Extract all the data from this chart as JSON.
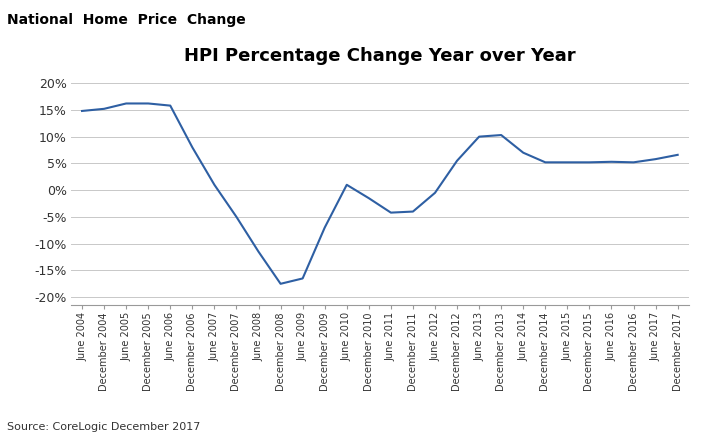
{
  "title": "HPI Percentage Change Year over Year",
  "super_title": "National  Home  Price  Change",
  "source": "Source: CoreLogic December 2017",
  "line_color": "#2E5FA3",
  "background_color": "#ffffff",
  "grid_color": "#c8c8c8",
  "ylim": [
    -0.215,
    0.225
  ],
  "ytick_labels": [
    "-20%",
    "-15%",
    "-10%",
    "-5%",
    "0%",
    "5%",
    "10%",
    "15%",
    "20%"
  ],
  "ytick_values": [
    -0.2,
    -0.15,
    -0.1,
    -0.05,
    0.0,
    0.05,
    0.1,
    0.15,
    0.2
  ],
  "x_labels": [
    "June 2004",
    "December 2004",
    "June 2005",
    "December 2005",
    "June 2006",
    "December 2006",
    "June 2007",
    "December 2007",
    "June 2008",
    "December 2008",
    "June 2009",
    "December 2009",
    "June 2010",
    "December 2010",
    "June 2011",
    "December 2011",
    "June 2012",
    "December 2012",
    "June 2013",
    "December 2013",
    "June 2014",
    "December 2014",
    "June 2015",
    "December 2015",
    "June 2016",
    "December 2016",
    "June 2017",
    "December 2017"
  ],
  "values": [
    0.148,
    0.152,
    0.162,
    0.162,
    0.158,
    0.08,
    0.01,
    -0.05,
    -0.115,
    -0.175,
    -0.165,
    -0.07,
    0.01,
    -0.015,
    -0.042,
    -0.04,
    -0.005,
    0.055,
    0.1,
    0.103,
    0.07,
    0.052,
    0.052,
    0.052,
    0.053,
    0.052,
    0.058,
    0.066
  ],
  "title_fontsize": 13,
  "super_title_fontsize": 10,
  "source_fontsize": 8,
  "ytick_fontsize": 9,
  "xtick_fontsize": 7
}
